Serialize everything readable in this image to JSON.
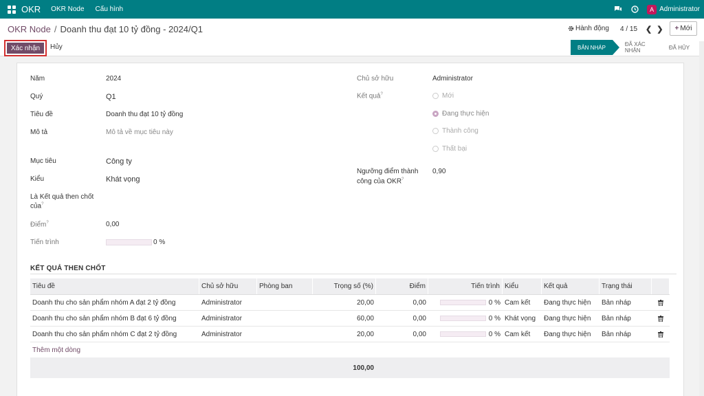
{
  "topbar": {
    "app_name": "OKR",
    "menu": [
      "OKR Node",
      "Cấu hình"
    ],
    "avatar_letter": "A",
    "user_name": "Administrator"
  },
  "breadcrumb": {
    "root": "OKR Node",
    "separator": "/",
    "current": "Doanh thu đạt 10 tỷ đồng - 2024/Q1"
  },
  "actions": {
    "label": "Hành động",
    "pager": "4 / 15",
    "new_label": "Mới"
  },
  "buttons": {
    "confirm": "Xác nhận",
    "cancel": "Hủy"
  },
  "status": [
    "BẢN NHÁP",
    "ĐÃ XÁC NHẬN",
    "ĐÃ HỦY"
  ],
  "form": {
    "year_label": "Năm",
    "year": "2024",
    "quarter_label": "Quý",
    "quarter": "Q1",
    "title_label": "Tiêu đề",
    "title": "Doanh thu đạt 10 tỷ đồng",
    "desc_label": "Mô tả",
    "desc_placeholder": "Mô tả về mục tiêu này",
    "target_label": "Mục tiêu",
    "target": "Công ty",
    "type_label": "Kiểu",
    "type": "Khát vọng",
    "kr_of_label_1": "Là Kết quả then chốt",
    "kr_of_label_2": "của",
    "score_label": "Điểm",
    "score": "0,00",
    "progress_label": "Tiến trình",
    "progress_value": 0,
    "progress_text": "0 %",
    "owner_label": "Chủ sở hữu",
    "owner": "Administrator",
    "result_label": "Kết quả",
    "result_options": [
      "Mới",
      "Đang thực hiện",
      "Thành công",
      "Thất bại"
    ],
    "result_selected": 1,
    "threshold_label_1": "Ngưỡng điểm thành",
    "threshold_label_2": "công của OKR",
    "threshold": "0,90",
    "help_mark": "?"
  },
  "key_results": {
    "section_title": "KẾT QUẢ THEN CHỐT",
    "columns": [
      "Tiêu đề",
      "Chủ sở hữu",
      "Phòng ban",
      "Trọng số (%)",
      "Điểm",
      "Tiến trình",
      "Kiểu",
      "Kết quả",
      "Trạng thái"
    ],
    "rows": [
      {
        "title": "Doanh thu cho sản phẩm nhóm A đạt 2 tỷ đồng",
        "owner": "Administrator",
        "dept": "",
        "weight": "20,00",
        "score": "0,00",
        "progress": "0 %",
        "progress_value": 0,
        "type": "Cam kết",
        "result": "Đang thực hiện",
        "state": "Bản nháp"
      },
      {
        "title": "Doanh thu cho sản phẩm nhóm B đạt 6 tỷ đồng",
        "owner": "Administrator",
        "dept": "",
        "weight": "60,00",
        "score": "0,00",
        "progress": "0 %",
        "progress_value": 0,
        "type": "Khát vọng",
        "result": "Đang thực hiện",
        "state": "Bản nháp"
      },
      {
        "title": "Doanh thu cho sản phẩm nhóm C đạt 2 tỷ đồng",
        "owner": "Administrator",
        "dept": "",
        "weight": "20,00",
        "score": "0,00",
        "progress": "0 %",
        "progress_value": 0,
        "type": "Cam kết",
        "result": "Đang thực hiện",
        "state": "Bản nháp"
      }
    ],
    "add_line": "Thêm một dòng",
    "total_weight": "100,00"
  },
  "colors": {
    "topbar": "#017e84",
    "primary": "#714b67",
    "highlight_border": "#d32f2f"
  }
}
